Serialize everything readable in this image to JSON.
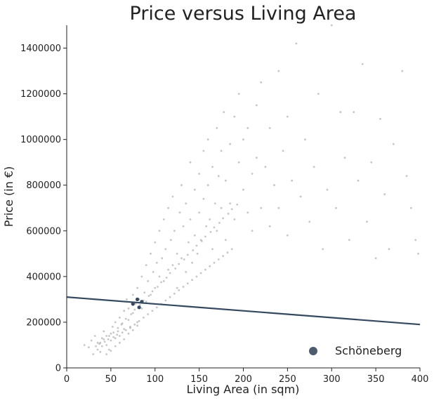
{
  "chart_data": {
    "type": "scatter",
    "title": "Price versus Living Area",
    "xlabel": "Living Area (in sqm)",
    "ylabel": "Price (in €)",
    "xlim": [
      0,
      400
    ],
    "ylim": [
      0,
      1500000
    ],
    "x_ticks": [
      0,
      50,
      100,
      150,
      200,
      250,
      300,
      350,
      400
    ],
    "y_ticks": [
      0,
      200000,
      400000,
      600000,
      800000,
      1000000,
      1200000,
      1400000
    ],
    "x_tick_labels": [
      "0",
      "50",
      "100",
      "150",
      "200",
      "250",
      "300",
      "350",
      "400"
    ],
    "y_tick_labels": [
      "0",
      "200000",
      "400000",
      "600000",
      "800000",
      "1000000",
      "1200000",
      "1400000"
    ],
    "grid": false,
    "series": [
      {
        "name": "",
        "kind": "scatter",
        "color": "#808080",
        "points": [
          [
            20,
            100000
          ],
          [
            25,
            90000
          ],
          [
            28,
            120000
          ],
          [
            30,
            60000
          ],
          [
            32,
            140000
          ],
          [
            35,
            80000
          ],
          [
            35,
            110000
          ],
          [
            38,
            70000
          ],
          [
            40,
            130000
          ],
          [
            40,
            95000
          ],
          [
            42,
            160000
          ],
          [
            45,
            100000
          ],
          [
            45,
            140000
          ],
          [
            48,
            80000
          ],
          [
            50,
            150000
          ],
          [
            50,
            120000
          ],
          [
            52,
            180000
          ],
          [
            55,
            130000
          ],
          [
            55,
            200000
          ],
          [
            58,
            160000
          ],
          [
            60,
            220000
          ],
          [
            60,
            140000
          ],
          [
            62,
            190000
          ],
          [
            65,
            250000
          ],
          [
            65,
            170000
          ],
          [
            68,
            300000
          ],
          [
            70,
            210000
          ],
          [
            70,
            260000
          ],
          [
            72,
            180000
          ],
          [
            75,
            320000
          ],
          [
            75,
            240000
          ],
          [
            78,
            280000
          ],
          [
            80,
            350000
          ],
          [
            80,
            200000
          ],
          [
            82,
            300000
          ],
          [
            85,
            400000
          ],
          [
            85,
            260000
          ],
          [
            88,
            330000
          ],
          [
            90,
            450000
          ],
          [
            90,
            290000
          ],
          [
            92,
            380000
          ],
          [
            95,
            500000
          ],
          [
            95,
            320000
          ],
          [
            98,
            420000
          ],
          [
            100,
            550000
          ],
          [
            100,
            350000
          ],
          [
            102,
            460000
          ],
          [
            105,
            400000
          ],
          [
            105,
            600000
          ],
          [
            108,
            480000
          ],
          [
            110,
            380000
          ],
          [
            110,
            650000
          ],
          [
            112,
            520000
          ],
          [
            115,
            430000
          ],
          [
            115,
            700000
          ],
          [
            118,
            560000
          ],
          [
            120,
            450000
          ],
          [
            120,
            750000
          ],
          [
            122,
            600000
          ],
          [
            125,
            500000
          ],
          [
            125,
            350000
          ],
          [
            128,
            680000
          ],
          [
            130,
            480000
          ],
          [
            130,
            800000
          ],
          [
            132,
            620000
          ],
          [
            135,
            420000
          ],
          [
            135,
            720000
          ],
          [
            138,
            550000
          ],
          [
            140,
            900000
          ],
          [
            140,
            650000
          ],
          [
            142,
            460000
          ],
          [
            145,
            780000
          ],
          [
            145,
            580000
          ],
          [
            148,
            500000
          ],
          [
            150,
            850000
          ],
          [
            150,
            680000
          ],
          [
            152,
            560000
          ],
          [
            155,
            950000
          ],
          [
            155,
            740000
          ],
          [
            158,
            620000
          ],
          [
            160,
            1000000
          ],
          [
            160,
            800000
          ],
          [
            162,
            650000
          ],
          [
            165,
            880000
          ],
          [
            165,
            520000
          ],
          [
            168,
            720000
          ],
          [
            170,
            1050000
          ],
          [
            170,
            600000
          ],
          [
            172,
            840000
          ],
          [
            175,
            950000
          ],
          [
            175,
            700000
          ],
          [
            178,
            1120000
          ],
          [
            180,
            820000
          ],
          [
            180,
            560000
          ],
          [
            185,
            980000
          ],
          [
            185,
            720000
          ],
          [
            190,
            1100000
          ],
          [
            190,
            650000
          ],
          [
            195,
            900000
          ],
          [
            195,
            1200000
          ],
          [
            200,
            780000
          ],
          [
            200,
            1000000
          ],
          [
            205,
            680000
          ],
          [
            205,
            1050000
          ],
          [
            210,
            850000
          ],
          [
            210,
            600000
          ],
          [
            215,
            1150000
          ],
          [
            215,
            920000
          ],
          [
            220,
            700000
          ],
          [
            220,
            1250000
          ],
          [
            225,
            880000
          ],
          [
            230,
            620000
          ],
          [
            230,
            1050000
          ],
          [
            235,
            800000
          ],
          [
            240,
            1300000
          ],
          [
            240,
            700000
          ],
          [
            245,
            950000
          ],
          [
            250,
            580000
          ],
          [
            250,
            1100000
          ],
          [
            255,
            820000
          ],
          [
            260,
            1420000
          ],
          [
            265,
            750000
          ],
          [
            270,
            1000000
          ],
          [
            275,
            640000
          ],
          [
            280,
            880000
          ],
          [
            285,
            1200000
          ],
          [
            290,
            520000
          ],
          [
            295,
            780000
          ],
          [
            300,
            1500000
          ],
          [
            305,
            700000
          ],
          [
            310,
            1120000
          ],
          [
            315,
            920000
          ],
          [
            320,
            560000
          ],
          [
            325,
            1120000
          ],
          [
            330,
            820000
          ],
          [
            335,
            1330000
          ],
          [
            340,
            640000
          ],
          [
            345,
            900000
          ],
          [
            350,
            480000
          ],
          [
            355,
            1090000
          ],
          [
            360,
            760000
          ],
          [
            365,
            520000
          ],
          [
            370,
            980000
          ],
          [
            380,
            1300000
          ],
          [
            385,
            840000
          ],
          [
            390,
            700000
          ],
          [
            395,
            560000
          ],
          [
            398,
            500000
          ],
          [
            45,
            60000
          ],
          [
            50,
            75000
          ],
          [
            55,
            95000
          ],
          [
            60,
            110000
          ],
          [
            65,
            125000
          ],
          [
            70,
            150000
          ],
          [
            75,
            165000
          ],
          [
            80,
            185000
          ],
          [
            38,
            110000
          ],
          [
            42,
            125000
          ],
          [
            48,
            140000
          ],
          [
            53,
            155000
          ],
          [
            58,
            175000
          ],
          [
            63,
            195000
          ],
          [
            67,
            215000
          ],
          [
            73,
            235000
          ],
          [
            77,
            255000
          ],
          [
            83,
            275000
          ],
          [
            87,
            295000
          ],
          [
            93,
            315000
          ],
          [
            97,
            335000
          ],
          [
            103,
            355000
          ],
          [
            107,
            375000
          ],
          [
            113,
            395000
          ],
          [
            117,
            415000
          ],
          [
            123,
            435000
          ],
          [
            127,
            455000
          ],
          [
            133,
            475000
          ],
          [
            137,
            495000
          ],
          [
            143,
            515000
          ],
          [
            147,
            535000
          ],
          [
            153,
            555000
          ],
          [
            157,
            575000
          ],
          [
            163,
            595000
          ],
          [
            167,
            615000
          ],
          [
            173,
            635000
          ],
          [
            177,
            655000
          ],
          [
            183,
            675000
          ],
          [
            187,
            695000
          ],
          [
            193,
            715000
          ],
          [
            33,
            95000
          ],
          [
            37,
            105000
          ],
          [
            43,
            115000
          ],
          [
            47,
            125000
          ],
          [
            53,
            135000
          ],
          [
            57,
            145000
          ],
          [
            63,
            155000
          ],
          [
            67,
            165000
          ],
          [
            72,
            175000
          ],
          [
            77,
            190000
          ],
          [
            82,
            205000
          ],
          [
            87,
            220000
          ],
          [
            92,
            235000
          ],
          [
            97,
            250000
          ],
          [
            102,
            265000
          ],
          [
            107,
            280000
          ],
          [
            112,
            295000
          ],
          [
            117,
            310000
          ],
          [
            122,
            325000
          ],
          [
            127,
            340000
          ],
          [
            132,
            355000
          ],
          [
            137,
            370000
          ],
          [
            142,
            385000
          ],
          [
            147,
            400000
          ],
          [
            152,
            415000
          ],
          [
            157,
            430000
          ],
          [
            162,
            445000
          ],
          [
            167,
            460000
          ],
          [
            172,
            475000
          ],
          [
            177,
            490000
          ],
          [
            182,
            505000
          ],
          [
            187,
            520000
          ]
        ]
      },
      {
        "name": "",
        "kind": "line",
        "color": "#34495e",
        "points": [
          [
            0,
            310000
          ],
          [
            400,
            190000
          ]
        ]
      },
      {
        "name": "Schöneberg",
        "kind": "highlight",
        "color": "#34495e",
        "points": [
          [
            75,
            280000
          ],
          [
            80,
            300000
          ],
          [
            82,
            265000
          ],
          [
            85,
            290000
          ]
        ]
      }
    ],
    "legend": {
      "position": "lower-right",
      "entries": [
        {
          "label": "Schöneberg",
          "color": "#4d5b6f"
        }
      ]
    }
  }
}
